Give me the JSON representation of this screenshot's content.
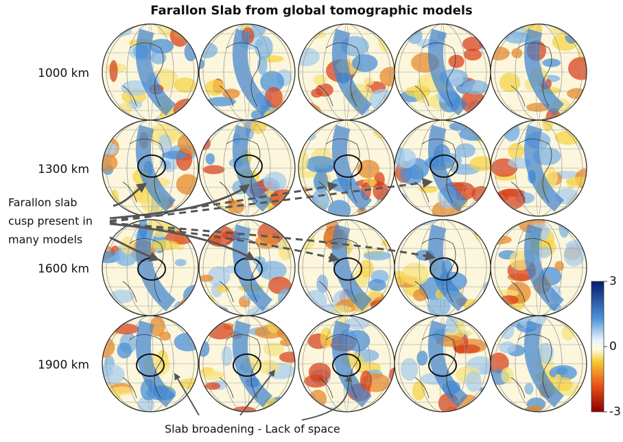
{
  "title": "Farallon Slab from global tomographic models",
  "rows": [
    "1000 km",
    "1300 km",
    "1600 km",
    "1900 km"
  ],
  "annotation": {
    "lines": [
      "Farallon slab",
      "cusp present in",
      "many models"
    ]
  },
  "caption": "Slab broadening - Lack of space",
  "colorbar": {
    "range": [
      -3,
      3
    ],
    "ticks": [
      3,
      0,
      -3
    ]
  }
}
